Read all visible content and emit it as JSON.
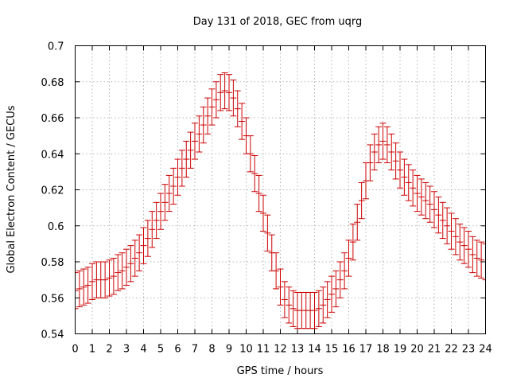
{
  "chart_data": {
    "type": "scatter",
    "title": "Day 131 of 2018, GEC from uqrg",
    "xlabel": "GPS time / hours",
    "ylabel": "Global Electron Content / GECUs",
    "xlim": [
      0,
      24
    ],
    "ylim": [
      0.54,
      0.7
    ],
    "xticks": [
      0,
      1,
      2,
      3,
      4,
      5,
      6,
      7,
      8,
      9,
      10,
      11,
      12,
      13,
      14,
      15,
      16,
      17,
      18,
      19,
      20,
      21,
      22,
      23,
      24
    ],
    "xtick_labels": [
      "0",
      "1",
      "2",
      "3",
      "4",
      "5",
      "6",
      "7",
      "8",
      "9",
      "10",
      "11",
      "12",
      "13",
      "14",
      "15",
      "16",
      "17",
      "18",
      "19",
      "20",
      "21",
      "22",
      "23",
      "24"
    ],
    "yticks": [
      0.54,
      0.56,
      0.58,
      0.6,
      0.62,
      0.64,
      0.66,
      0.68,
      0.7
    ],
    "ytick_labels": [
      "0.54",
      "0.56",
      "0.58",
      "0.6",
      "0.62",
      "0.64",
      "0.66",
      "0.68",
      "0.7"
    ],
    "grid": true,
    "error_color": "#cc0000",
    "error_halfwidth": 0.01,
    "x": [
      0,
      0.25,
      0.5,
      0.75,
      1,
      1.25,
      1.5,
      1.75,
      2,
      2.25,
      2.5,
      2.75,
      3,
      3.25,
      3.5,
      3.75,
      4,
      4.25,
      4.5,
      4.75,
      5,
      5.25,
      5.5,
      5.75,
      6,
      6.25,
      6.5,
      6.75,
      7,
      7.25,
      7.5,
      7.75,
      8,
      8.25,
      8.5,
      8.75,
      9,
      9.25,
      9.5,
      9.75,
      10,
      10.25,
      10.5,
      10.75,
      11,
      11.25,
      11.5,
      11.75,
      12,
      12.25,
      12.5,
      12.75,
      13,
      13.25,
      13.5,
      13.75,
      14,
      14.25,
      14.5,
      14.75,
      15,
      15.25,
      15.5,
      15.75,
      16,
      16.25,
      16.5,
      16.75,
      17,
      17.25,
      17.5,
      17.75,
      18,
      18.25,
      18.5,
      18.75,
      19,
      19.25,
      19.5,
      19.75,
      20,
      20.25,
      20.5,
      20.75,
      21,
      21.25,
      21.5,
      21.75,
      22,
      22.25,
      22.5,
      22.75,
      23,
      23.25,
      23.5,
      23.75,
      24
    ],
    "y": [
      0.564,
      0.565,
      0.566,
      0.567,
      0.569,
      0.57,
      0.57,
      0.57,
      0.571,
      0.572,
      0.574,
      0.575,
      0.577,
      0.579,
      0.582,
      0.585,
      0.589,
      0.593,
      0.598,
      0.603,
      0.608,
      0.613,
      0.618,
      0.622,
      0.627,
      0.632,
      0.637,
      0.642,
      0.647,
      0.651,
      0.656,
      0.661,
      0.666,
      0.67,
      0.674,
      0.675,
      0.674,
      0.671,
      0.665,
      0.658,
      0.65,
      0.64,
      0.629,
      0.618,
      0.607,
      0.596,
      0.585,
      0.575,
      0.566,
      0.559,
      0.556,
      0.554,
      0.553,
      0.553,
      0.553,
      0.553,
      0.553,
      0.554,
      0.556,
      0.559,
      0.562,
      0.565,
      0.57,
      0.575,
      0.582,
      0.591,
      0.602,
      0.614,
      0.625,
      0.635,
      0.641,
      0.645,
      0.647,
      0.645,
      0.641,
      0.636,
      0.631,
      0.627,
      0.624,
      0.621,
      0.618,
      0.616,
      0.614,
      0.612,
      0.609,
      0.606,
      0.603,
      0.6,
      0.597,
      0.594,
      0.591,
      0.589,
      0.587,
      0.584,
      0.582,
      0.581,
      0.58
    ]
  }
}
